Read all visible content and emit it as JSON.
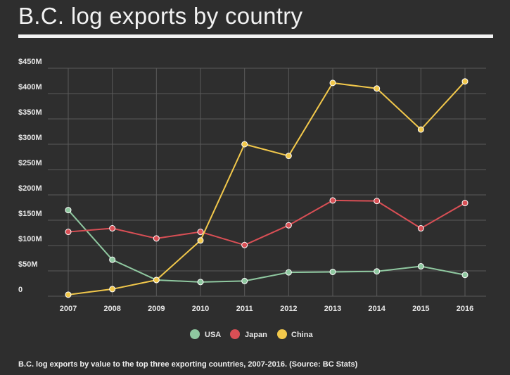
{
  "header": {
    "title": "B.C. log exports by country"
  },
  "caption": "B.C. log exports by value to the top three exporting countries, 2007-2016. (Source: BC Stats)",
  "chart_data": {
    "type": "line",
    "title": "B.C. log exports by country",
    "xlabel": "",
    "ylabel": "",
    "x": [
      "2007",
      "2008",
      "2009",
      "2010",
      "2011",
      "2012",
      "2013",
      "2014",
      "2015",
      "2016"
    ],
    "y_ticks": [
      {
        "value": 0,
        "label": "0"
      },
      {
        "value": 50,
        "label": "$50M"
      },
      {
        "value": 100,
        "label": "$100M"
      },
      {
        "value": 150,
        "label": "$150M"
      },
      {
        "value": 200,
        "label": "$200M"
      },
      {
        "value": 250,
        "label": "$250M"
      },
      {
        "value": 300,
        "label": "$300M"
      },
      {
        "value": 350,
        "label": "$350M"
      },
      {
        "value": 400,
        "label": "$400M"
      },
      {
        "value": 450,
        "label": "$450M"
      }
    ],
    "ylim": [
      0,
      450
    ],
    "grid": true,
    "legend_position": "bottom-center",
    "series": [
      {
        "name": "USA",
        "color": "#8fc8a0",
        "values": [
          170,
          72,
          32,
          28,
          30,
          47,
          48,
          49,
          59,
          42
        ]
      },
      {
        "name": "Japan",
        "color": "#d94f55",
        "values": [
          127,
          134,
          114,
          127,
          101,
          140,
          189,
          188,
          134,
          184
        ]
      },
      {
        "name": "China",
        "color": "#f2c84b",
        "values": [
          3,
          14,
          32,
          110,
          300,
          277,
          421,
          410,
          329,
          424
        ]
      }
    ]
  }
}
